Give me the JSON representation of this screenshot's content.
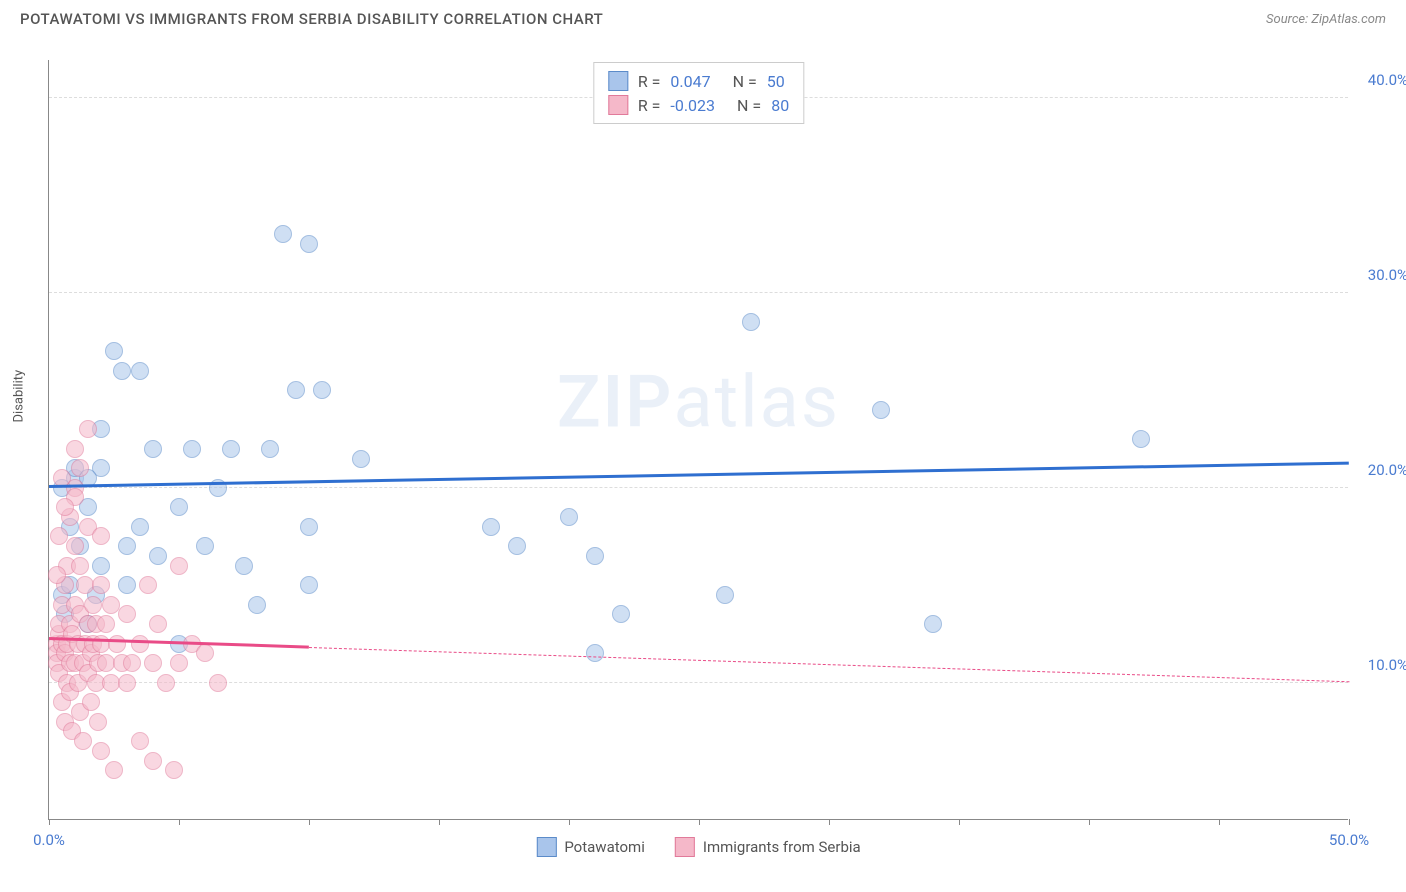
{
  "header": {
    "title": "POTAWATOMI VS IMMIGRANTS FROM SERBIA DISABILITY CORRELATION CHART",
    "source": "Source: ZipAtlas.com"
  },
  "chart": {
    "type": "scatter",
    "xlim": [
      0,
      50
    ],
    "ylim": [
      3,
      42
    ],
    "ylabel": "Disability",
    "background_color": "#ffffff",
    "grid_color": "#dddddd",
    "xticks": [
      0,
      5,
      10,
      15,
      20,
      25,
      30,
      35,
      40,
      45,
      50
    ],
    "xtick_labels": {
      "0": "0.0%",
      "50": "50.0%"
    },
    "xtick_label_color": "#4a7bd0",
    "yticks": [
      10,
      20,
      30,
      40
    ],
    "ytick_labels": [
      "10.0%",
      "20.0%",
      "30.0%",
      "40.0%"
    ],
    "ytick_label_color": "#4a7bd0",
    "watermark": "ZIPatlas",
    "marker_radius": 9,
    "marker_border_width": 1,
    "series": [
      {
        "name": "Potawatomi",
        "fill_color": "#a9c5eb",
        "fill_opacity": 0.55,
        "border_color": "#5b8bc9",
        "trend_color": "#2f6fd0",
        "trend_width": 2.5,
        "R": "0.047",
        "N": "50",
        "trend": {
          "x0": 0,
          "y0": 20.0,
          "x1": 50,
          "y1": 21.2,
          "solid_until_x": 50
        },
        "points": [
          [
            0.5,
            14.5
          ],
          [
            0.5,
            20
          ],
          [
            0.8,
            15
          ],
          [
            1,
            20.5
          ],
          [
            1,
            21
          ],
          [
            1.2,
            17
          ],
          [
            1.5,
            13
          ],
          [
            1.5,
            19
          ],
          [
            2,
            16
          ],
          [
            2,
            21
          ],
          [
            2.5,
            27
          ],
          [
            2.8,
            26
          ],
          [
            3,
            17
          ],
          [
            3.5,
            18
          ],
          [
            3.5,
            26
          ],
          [
            4,
            22
          ],
          [
            4.2,
            16.5
          ],
          [
            5,
            12
          ],
          [
            5,
            19
          ],
          [
            5.5,
            22
          ],
          [
            6,
            17
          ],
          [
            6.5,
            20
          ],
          [
            7,
            22
          ],
          [
            7.5,
            16
          ],
          [
            8,
            14
          ],
          [
            8.5,
            22
          ],
          [
            9,
            33
          ],
          [
            9.5,
            25
          ],
          [
            10,
            15
          ],
          [
            10,
            18
          ],
          [
            10,
            32.5
          ],
          [
            10.5,
            25
          ],
          [
            12,
            21.5
          ],
          [
            17,
            18
          ],
          [
            18,
            17
          ],
          [
            20,
            18.5
          ],
          [
            21,
            16.5
          ],
          [
            21,
            11.5
          ],
          [
            22,
            13.5
          ],
          [
            26,
            14.5
          ],
          [
            27,
            28.5
          ],
          [
            32,
            24
          ],
          [
            34,
            13
          ],
          [
            42,
            22.5
          ],
          [
            1.5,
            20.5
          ],
          [
            2,
            23
          ],
          [
            0.8,
            18
          ],
          [
            0.6,
            13.5
          ],
          [
            1.8,
            14.5
          ],
          [
            3,
            15
          ]
        ]
      },
      {
        "name": "Immigrants from Serbia",
        "fill_color": "#f5b8c9",
        "fill_opacity": 0.55,
        "border_color": "#e17a9a",
        "trend_color": "#e94b87",
        "trend_width": 2.5,
        "R": "-0.023",
        "N": "80",
        "trend": {
          "x0": 0,
          "y0": 12.2,
          "x1": 50,
          "y1": 10.0,
          "solid_until_x": 10
        },
        "points": [
          [
            0.3,
            12
          ],
          [
            0.3,
            11.5
          ],
          [
            0.3,
            11
          ],
          [
            0.4,
            12.5
          ],
          [
            0.4,
            10.5
          ],
          [
            0.4,
            13
          ],
          [
            0.5,
            9
          ],
          [
            0.5,
            12
          ],
          [
            0.5,
            14
          ],
          [
            0.6,
            11.5
          ],
          [
            0.6,
            8
          ],
          [
            0.6,
            15
          ],
          [
            0.7,
            12
          ],
          [
            0.7,
            10
          ],
          [
            0.7,
            16
          ],
          [
            0.8,
            11
          ],
          [
            0.8,
            13
          ],
          [
            0.8,
            9.5
          ],
          [
            0.9,
            12.5
          ],
          [
            0.9,
            7.5
          ],
          [
            1,
            11
          ],
          [
            1,
            14
          ],
          [
            1,
            17
          ],
          [
            1,
            20
          ],
          [
            1,
            22
          ],
          [
            1.1,
            10
          ],
          [
            1.1,
            12
          ],
          [
            1.2,
            8.5
          ],
          [
            1.2,
            13.5
          ],
          [
            1.2,
            16
          ],
          [
            1.3,
            11
          ],
          [
            1.3,
            7
          ],
          [
            1.4,
            12
          ],
          [
            1.4,
            15
          ],
          [
            1.5,
            10.5
          ],
          [
            1.5,
            13
          ],
          [
            1.5,
            18
          ],
          [
            1.5,
            23
          ],
          [
            1.6,
            9
          ],
          [
            1.6,
            11.5
          ],
          [
            1.7,
            12
          ],
          [
            1.7,
            14
          ],
          [
            1.8,
            10
          ],
          [
            1.8,
            13
          ],
          [
            1.9,
            11
          ],
          [
            1.9,
            8
          ],
          [
            2,
            12
          ],
          [
            2,
            15
          ],
          [
            2,
            17.5
          ],
          [
            2,
            6.5
          ],
          [
            2.2,
            11
          ],
          [
            2.2,
            13
          ],
          [
            2.4,
            10
          ],
          [
            2.4,
            14
          ],
          [
            2.5,
            5.5
          ],
          [
            2.6,
            12
          ],
          [
            2.8,
            11
          ],
          [
            3,
            10
          ],
          [
            3,
            13.5
          ],
          [
            3.2,
            11
          ],
          [
            3.5,
            12
          ],
          [
            3.5,
            7
          ],
          [
            3.8,
            15
          ],
          [
            4,
            11
          ],
          [
            4,
            6
          ],
          [
            4.2,
            13
          ],
          [
            4.5,
            10
          ],
          [
            4.8,
            5.5
          ],
          [
            5,
            11
          ],
          [
            5,
            16
          ],
          [
            5.5,
            12
          ],
          [
            6,
            11.5
          ],
          [
            6.5,
            10
          ],
          [
            1,
            19.5
          ],
          [
            0.5,
            20.5
          ],
          [
            0.8,
            18.5
          ],
          [
            1.2,
            21
          ],
          [
            0.6,
            19
          ],
          [
            0.4,
            17.5
          ],
          [
            0.3,
            15.5
          ]
        ]
      }
    ],
    "legend": {
      "items": [
        "Potawatomi",
        "Immigrants from Serbia"
      ]
    }
  }
}
